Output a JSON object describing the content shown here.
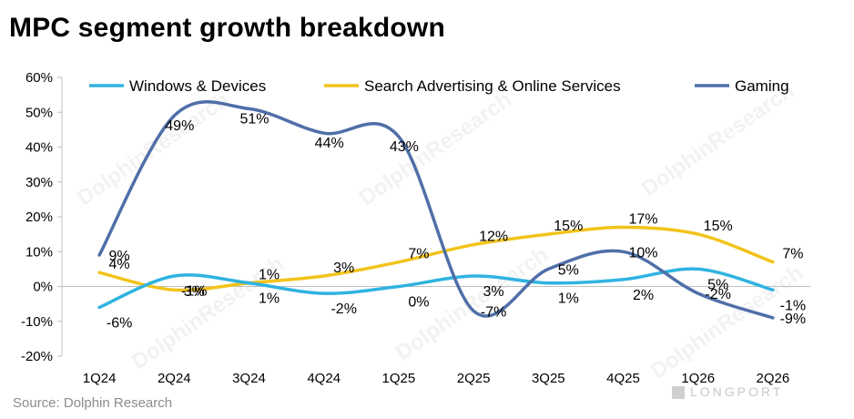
{
  "title": "MPC segment growth breakdown",
  "source": "Source: Dolphin Research",
  "watermark": "DolphinResearch",
  "logo_text": "LONGPORT",
  "chart_data": {
    "type": "line",
    "categories": [
      "1Q24",
      "2Q24",
      "3Q24",
      "4Q24",
      "1Q25",
      "2Q25",
      "3Q25",
      "4Q25",
      "1Q26",
      "2Q26"
    ],
    "ylim": [
      -20,
      60
    ],
    "yticks": [
      "-20%",
      "-10%",
      "0%",
      "10%",
      "20%",
      "30%",
      "40%",
      "50%",
      "60%"
    ],
    "ytick_values": [
      -20,
      -10,
      0,
      10,
      20,
      30,
      40,
      50,
      60
    ],
    "grid": false,
    "legend": "top",
    "series": [
      {
        "name": "Windows & Devices",
        "color": "#2fb3e0",
        "values": [
          -6,
          3,
          1,
          -2,
          0,
          3,
          1,
          2,
          5,
          -1
        ],
        "labels": [
          "-6%",
          "3%",
          "1%",
          "-2%",
          "0%",
          "3%",
          "1%",
          "2%",
          "5%",
          "-1%"
        ]
      },
      {
        "name": "Search Advertising & Online Services",
        "color": "#f2c31b",
        "values": [
          4,
          -1,
          1,
          3,
          7,
          12,
          15,
          17,
          15,
          7
        ],
        "labels": [
          "4%",
          "-1%",
          "1%",
          "3%",
          "7%",
          "12%",
          "15%",
          "17%",
          "15%",
          "7%"
        ]
      },
      {
        "name": "Gaming",
        "color": "#4f6fa8",
        "values": [
          9,
          49,
          51,
          44,
          43,
          -7,
          5,
          10,
          -2,
          -9
        ],
        "labels": [
          "9%",
          "49%",
          "51%",
          "44%",
          "43%",
          "-7%",
          "5%",
          "10%",
          "-2%",
          "-9%"
        ]
      }
    ]
  }
}
